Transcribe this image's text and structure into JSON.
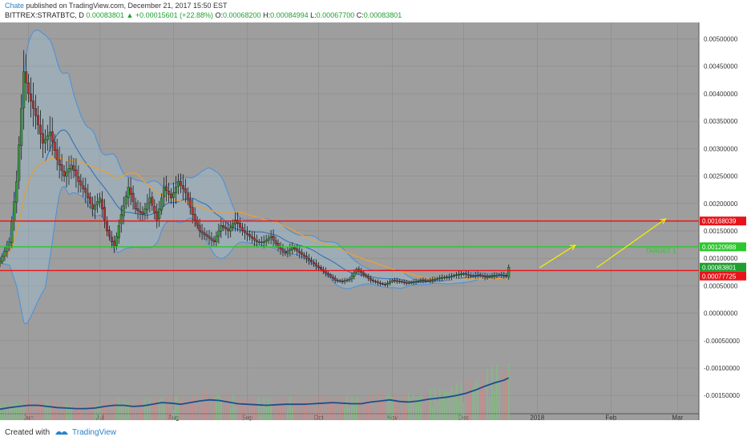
{
  "header": {
    "author": "Chate",
    "publish_text": " published on TradingView.com, December 21, 2017 15:50 EST",
    "symbol": "BITTREX:STRATBTC, D",
    "last": "0.00083801",
    "change_arrow": "▲",
    "change": "+0.00015601 (+22.88%)",
    "o_label": "O:",
    "o_value": "0.00068200",
    "h_label": "H:",
    "h_value": "0.00084994",
    "l_label": "L:",
    "l_value": "0.00067700",
    "c_label": "C:",
    "c_value": "0.00083801"
  },
  "footer": {
    "created_with": "Created with",
    "brand": "TradingView"
  },
  "chart_data": {
    "type": "candlestick",
    "y_axis_ticks": [
      "0.00500000",
      "0.00450000",
      "0.00400000",
      "0.00350000",
      "0.00300000",
      "0.00250000",
      "0.00200000",
      "0.00150000",
      "0.00100000",
      "0.00050000",
      "0.00000000",
      "-0.00050000",
      "-0.00100000",
      "-0.00150000"
    ],
    "y_tick_values": [
      0.005,
      0.0045,
      0.004,
      0.0035,
      0.003,
      0.0025,
      0.002,
      0.0015,
      0.001,
      0.0005,
      0,
      -0.0005,
      -0.001,
      -0.0015
    ],
    "ylim": [
      -0.00195,
      0.0053
    ],
    "x_axis_ticks": [
      "Jun",
      "Jul",
      "Aug",
      "Sep",
      "Oct",
      "Nov",
      "Dec",
      "2018",
      "Feb",
      "Mar"
    ],
    "x_tick_days": [
      0,
      30,
      61,
      92,
      122,
      153,
      183,
      214,
      245,
      273
    ],
    "xlim_days": [
      -12,
      282
    ],
    "last_data_day": 202,
    "price_labels": [
      {
        "text": "0.00168039",
        "value": 0.00168039,
        "color": "#e8141a"
      },
      {
        "text": "0.00120988",
        "value": 0.00120988,
        "color": "#2cc72c"
      },
      {
        "text": "0.00083801",
        "value": 0.00083801,
        "color": "#1f9f2f"
      },
      {
        "text": "0.00077725",
        "value": 0.00077725,
        "color": "#e8141a"
      }
    ],
    "horizontal_lines": [
      {
        "value": 0.00168039,
        "color": "#e8141a"
      },
      {
        "value": 0.00120988,
        "color": "#2cc72c"
      },
      {
        "value": 0.00077725,
        "color": "#e8141a"
      }
    ],
    "annotations": [
      {
        "text": "TARGET 1",
        "day": 266,
        "value": 0.0011,
        "color": "#2cc72c"
      }
    ],
    "arrows": [
      {
        "from_day": 215,
        "from_value": 0.00083,
        "to_day": 230,
        "to_value": 0.00124,
        "color": "#f6f000"
      },
      {
        "from_day": 239,
        "from_value": 0.00083,
        "to_day": 268,
        "to_value": 0.00172,
        "color": "#f6f000"
      }
    ],
    "price_series": {
      "days": [
        -12,
        -8,
        -5,
        -2,
        0,
        3,
        6,
        9,
        12,
        15,
        18,
        21,
        24,
        27,
        30,
        33,
        36,
        39,
        42,
        45,
        48,
        51,
        54,
        57,
        60,
        63,
        66,
        69,
        72,
        75,
        78,
        81,
        84,
        87,
        90,
        93,
        96,
        99,
        102,
        105,
        108,
        111,
        114,
        117,
        120,
        123,
        126,
        129,
        132,
        135,
        138,
        141,
        144,
        147,
        150,
        153,
        156,
        159,
        162,
        165,
        168,
        171,
        174,
        177,
        180,
        183,
        186,
        189,
        192,
        195,
        198,
        201,
        202
      ],
      "close": [
        0.00095,
        0.0013,
        0.0024,
        0.0044,
        0.004,
        0.0036,
        0.0031,
        0.0033,
        0.0028,
        0.0025,
        0.0027,
        0.0024,
        0.0022,
        0.0019,
        0.0021,
        0.0015,
        0.0012,
        0.0018,
        0.0023,
        0.0019,
        0.0018,
        0.0021,
        0.0017,
        0.0023,
        0.0021,
        0.0024,
        0.0022,
        0.0018,
        0.0015,
        0.0014,
        0.0013,
        0.0016,
        0.0015,
        0.0017,
        0.0015,
        0.0014,
        0.0013,
        0.0013,
        0.0014,
        0.0012,
        0.0011,
        0.0012,
        0.0011,
        0.001,
        0.0009,
        0.0008,
        0.0007,
        0.0006,
        0.00058,
        0.00062,
        0.0008,
        0.0007,
        0.0006,
        0.00055,
        0.00052,
        0.0006,
        0.00058,
        0.00055,
        0.00057,
        0.0006,
        0.00059,
        0.00062,
        0.00065,
        0.00066,
        0.0007,
        0.00072,
        0.00068,
        0.0007,
        0.00066,
        0.00068,
        0.0007,
        0.00068,
        0.00084
      ]
    },
    "volume_series": {
      "days": [
        -12,
        -8,
        -4,
        0,
        4,
        8,
        12,
        16,
        20,
        24,
        28,
        32,
        36,
        40,
        44,
        48,
        52,
        56,
        60,
        64,
        68,
        72,
        76,
        80,
        84,
        88,
        92,
        96,
        100,
        104,
        108,
        112,
        116,
        120,
        124,
        128,
        132,
        136,
        140,
        144,
        148,
        152,
        156,
        160,
        164,
        168,
        172,
        176,
        180,
        184,
        188,
        192,
        196,
        200,
        202
      ],
      "volume_ma": [
        -0.00175,
        -0.00172,
        -0.0017,
        -0.00168,
        -0.00168,
        -0.0017,
        -0.00172,
        -0.00173,
        -0.00174,
        -0.00174,
        -0.00173,
        -0.0017,
        -0.00168,
        -0.00168,
        -0.0017,
        -0.00169,
        -0.00166,
        -0.00163,
        -0.00164,
        -0.00166,
        -0.00163,
        -0.0016,
        -0.00158,
        -0.00159,
        -0.00162,
        -0.00165,
        -0.00166,
        -0.00167,
        -0.00168,
        -0.00167,
        -0.00166,
        -0.00166,
        -0.00166,
        -0.00165,
        -0.00164,
        -0.00163,
        -0.00164,
        -0.00165,
        -0.00165,
        -0.00162,
        -0.0016,
        -0.00158,
        -0.00161,
        -0.00162,
        -0.0016,
        -0.00157,
        -0.00155,
        -0.00153,
        -0.0015,
        -0.00146,
        -0.0014,
        -0.00133,
        -0.00127,
        -0.00122,
        -0.00118
      ]
    }
  }
}
